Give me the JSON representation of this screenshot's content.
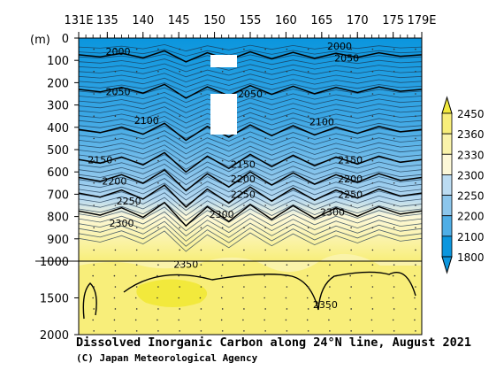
{
  "chart_data": {
    "type": "heatmap",
    "title": "Dissolved Inorganic Carbon along 24°N line, August 2021",
    "credit": "(C) Japan Meteorological Agency",
    "x_ticks": [
      "131E",
      "135",
      "140",
      "145",
      "150",
      "155",
      "160",
      "165",
      "170",
      "175",
      "179E"
    ],
    "x_tick_values": [
      131,
      135,
      140,
      145,
      150,
      155,
      160,
      165,
      170,
      175,
      179
    ],
    "xlim": [
      131,
      179
    ],
    "y_unit": "(m)",
    "upper_ticks": [
      "0",
      "100",
      "200",
      "300",
      "400",
      "500",
      "600",
      "700",
      "800",
      "900",
      "1000"
    ],
    "upper_tick_values": [
      0,
      100,
      200,
      300,
      400,
      500,
      600,
      700,
      800,
      900,
      1000
    ],
    "lower_ticks": [
      "1500",
      "2000"
    ],
    "lower_tick_values": [
      1500,
      2000
    ],
    "ylim": [
      0,
      2000
    ],
    "y_break": 1000,
    "colorbar": {
      "labels": [
        "2450",
        "2360",
        "2330",
        "2300",
        "2250",
        "2200",
        "2100",
        "1800"
      ],
      "values": [
        2450,
        2360,
        2330,
        2300,
        2250,
        2200,
        2100,
        1800
      ],
      "colors": [
        "#f2e93c",
        "#f8ee7a",
        "#faf3aa",
        "#fdf8d8",
        "#bcdcf2",
        "#8cc6ec",
        "#4faee6",
        "#0b96de"
      ]
    },
    "contour_labels": [
      {
        "text": "2000",
        "lon": 136.5,
        "depth": 60
      },
      {
        "text": "2000",
        "lon": 167.5,
        "depth": 35
      },
      {
        "text": "2050",
        "lon": 168.5,
        "depth": 90
      },
      {
        "text": "2050",
        "lon": 136.5,
        "depth": 240
      },
      {
        "text": "2050",
        "lon": 155,
        "depth": 250
      },
      {
        "text": "2100",
        "lon": 140.5,
        "depth": 370
      },
      {
        "text": "2100",
        "lon": 165,
        "depth": 375
      },
      {
        "text": "2150",
        "lon": 134,
        "depth": 545
      },
      {
        "text": "2150",
        "lon": 154,
        "depth": 565
      },
      {
        "text": "2150",
        "lon": 169,
        "depth": 545
      },
      {
        "text": "2200",
        "lon": 136,
        "depth": 640
      },
      {
        "text": "2200",
        "lon": 154,
        "depth": 630
      },
      {
        "text": "2200",
        "lon": 169,
        "depth": 630
      },
      {
        "text": "2250",
        "lon": 138,
        "depth": 730
      },
      {
        "text": "2250",
        "lon": 154,
        "depth": 700
      },
      {
        "text": "2250",
        "lon": 169,
        "depth": 700
      },
      {
        "text": "2300",
        "lon": 137,
        "depth": 830
      },
      {
        "text": "2300",
        "lon": 151,
        "depth": 790
      },
      {
        "text": "2300",
        "lon": 166.5,
        "depth": 780
      },
      {
        "text": "2350",
        "lon": 146,
        "depth": 1040
      },
      {
        "text": "2350",
        "lon": 165.5,
        "depth": 1590
      }
    ]
  }
}
